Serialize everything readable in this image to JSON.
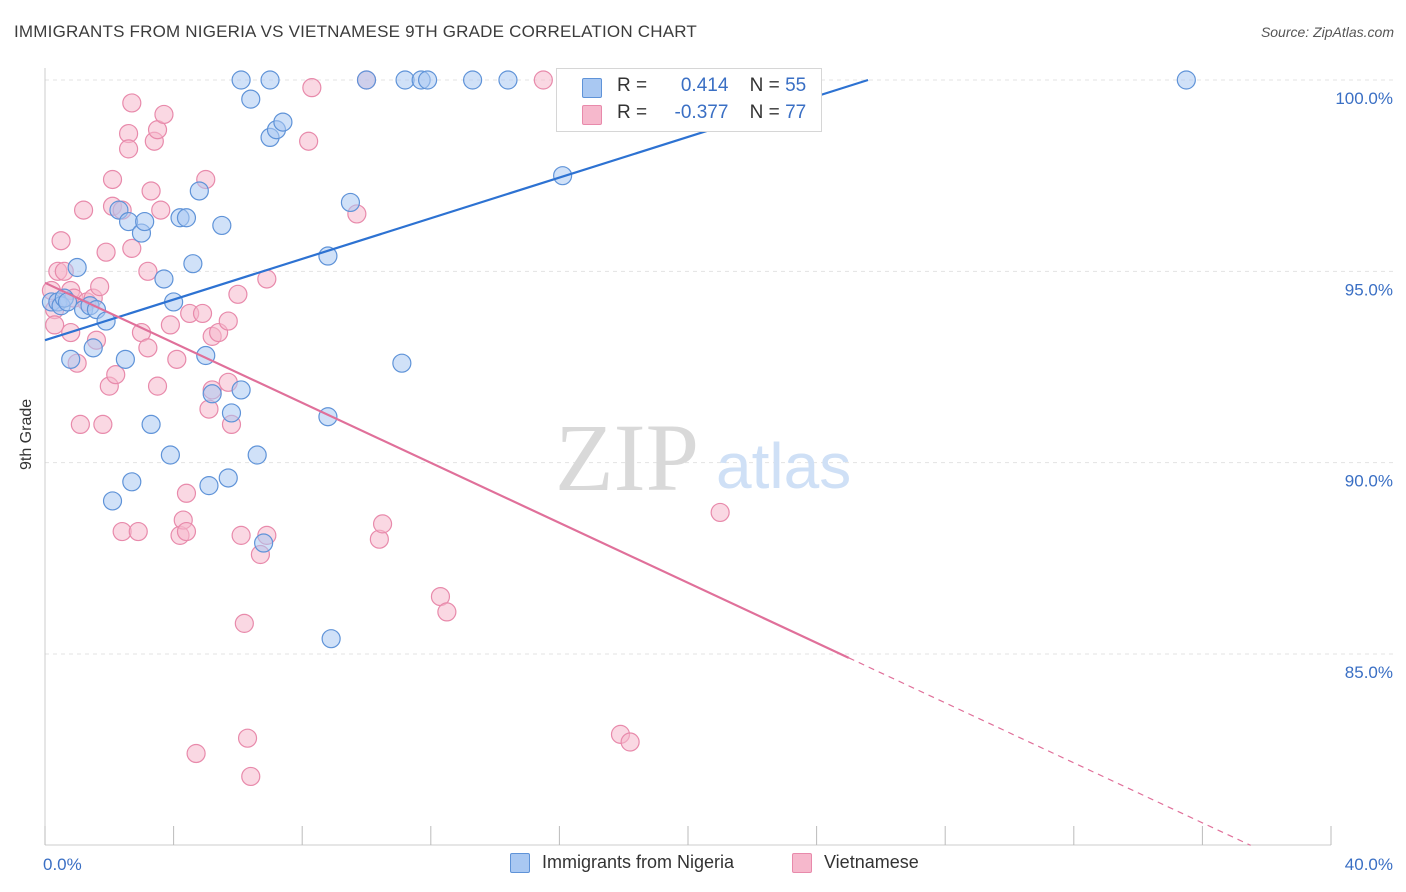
{
  "title": "IMMIGRANTS FROM NIGERIA VS VIETNAMESE 9TH GRADE CORRELATION CHART",
  "source": "Source: ZipAtlas.com",
  "watermark": {
    "zip": "ZIP",
    "atlas": "atlas"
  },
  "legend": {
    "r_label": "R =",
    "n_label": "N =",
    "rows": [
      {
        "r": "0.414",
        "n": "55",
        "color": "#a9c8f2"
      },
      {
        "r": "-0.377",
        "n": "77",
        "color": "#f6b8cc"
      }
    ]
  },
  "bottom_legend": [
    "Immigrants from Nigeria",
    "Vietnamese"
  ],
  "colors": {
    "blue_fill": "#a9c8f2",
    "blue_stroke": "#5f93d8",
    "blue_line": "#2d72d2",
    "pink_fill": "#f6b8cc",
    "pink_stroke": "#e88aab",
    "pink_line": "#e0709a",
    "grid": "#e3e3e3",
    "tick_text": "#3a6fc4"
  },
  "chart_data": {
    "type": "scatter",
    "title": "IMMIGRANTS FROM NIGERIA VS VIETNAMESE 9TH GRADE CORRELATION CHART",
    "xlabel": "",
    "ylabel": "9th Grade",
    "xlim": [
      0,
      40
    ],
    "ylim": [
      80.0,
      100.9
    ],
    "x_tick_labels": [
      "0.0%",
      "40.0%"
    ],
    "y_ticks": [
      100,
      95,
      90,
      85
    ],
    "y_tick_labels": [
      "100.0%",
      "95.0%",
      "90.0%",
      "85.0%"
    ],
    "grid": true,
    "legend_placement": "top-center",
    "series": [
      {
        "name": "Immigrants from Nigeria",
        "r": 0.414,
        "n": 55,
        "trend": {
          "x1": 0.0,
          "y1": 93.2,
          "x2": 25.6,
          "y2": 100.0
        },
        "points": [
          [
            0.2,
            94.2
          ],
          [
            0.4,
            94.2
          ],
          [
            0.5,
            94.1
          ],
          [
            0.6,
            94.3
          ],
          [
            0.7,
            94.2
          ],
          [
            0.8,
            92.7
          ],
          [
            1.0,
            95.1
          ],
          [
            1.2,
            94.0
          ],
          [
            1.4,
            94.1
          ],
          [
            1.5,
            93.0
          ],
          [
            1.6,
            94.0
          ],
          [
            1.9,
            93.7
          ],
          [
            2.1,
            89.0
          ],
          [
            2.3,
            96.6
          ],
          [
            2.5,
            92.7
          ],
          [
            2.6,
            96.3
          ],
          [
            2.7,
            89.5
          ],
          [
            3.0,
            96.0
          ],
          [
            3.1,
            96.3
          ],
          [
            3.3,
            91.0
          ],
          [
            3.7,
            94.8
          ],
          [
            3.9,
            90.2
          ],
          [
            4.0,
            94.2
          ],
          [
            4.2,
            96.4
          ],
          [
            4.4,
            96.4
          ],
          [
            4.6,
            95.2
          ],
          [
            4.8,
            97.1
          ],
          [
            5.0,
            92.8
          ],
          [
            5.1,
            89.4
          ],
          [
            5.2,
            91.8
          ],
          [
            5.5,
            96.2
          ],
          [
            5.7,
            89.6
          ],
          [
            5.8,
            91.3
          ],
          [
            6.1,
            91.9
          ],
          [
            6.4,
            99.5
          ],
          [
            6.6,
            90.2
          ],
          [
            6.8,
            87.9
          ],
          [
            7.0,
            98.5
          ],
          [
            7.2,
            98.7
          ],
          [
            7.4,
            98.9
          ],
          [
            6.1,
            100.0
          ],
          [
            7.0,
            100.0
          ],
          [
            9.5,
            96.8
          ],
          [
            8.8,
            95.4
          ],
          [
            8.8,
            91.2
          ],
          [
            8.9,
            85.4
          ],
          [
            10.0,
            100.0
          ],
          [
            11.2,
            100.0
          ],
          [
            11.7,
            100.0
          ],
          [
            11.9,
            100.0
          ],
          [
            11.1,
            92.6
          ],
          [
            13.3,
            100.0
          ],
          [
            14.4,
            100.0
          ],
          [
            16.1,
            97.5
          ],
          [
            35.5,
            100.0
          ]
        ]
      },
      {
        "name": "Vietnamese",
        "r": -0.377,
        "n": 77,
        "trend": {
          "x1": 0.0,
          "y1": 94.7,
          "x2": 25.0,
          "y2": 84.9
        },
        "trend_dashed": {
          "x1": 25.0,
          "y1": 84.9,
          "x2": 37.5,
          "y2": 80.0
        },
        "points": [
          [
            0.2,
            94.5
          ],
          [
            0.3,
            94.0
          ],
          [
            0.3,
            93.6
          ],
          [
            0.4,
            95.0
          ],
          [
            0.5,
            95.8
          ],
          [
            0.6,
            95.0
          ],
          [
            0.8,
            93.4
          ],
          [
            0.8,
            94.5
          ],
          [
            0.9,
            94.3
          ],
          [
            1.0,
            92.6
          ],
          [
            1.1,
            91.0
          ],
          [
            1.2,
            96.6
          ],
          [
            1.3,
            94.2
          ],
          [
            1.5,
            94.3
          ],
          [
            1.6,
            93.2
          ],
          [
            1.7,
            94.6
          ],
          [
            1.8,
            91.0
          ],
          [
            1.9,
            95.5
          ],
          [
            2.0,
            92.0
          ],
          [
            2.1,
            96.7
          ],
          [
            2.1,
            97.4
          ],
          [
            2.2,
            92.3
          ],
          [
            2.4,
            96.6
          ],
          [
            2.4,
            88.2
          ],
          [
            2.6,
            98.6
          ],
          [
            2.6,
            98.2
          ],
          [
            2.7,
            95.6
          ],
          [
            2.7,
            99.4
          ],
          [
            2.9,
            88.2
          ],
          [
            3.0,
            93.4
          ],
          [
            3.2,
            95.0
          ],
          [
            3.2,
            93.0
          ],
          [
            3.3,
            97.1
          ],
          [
            3.4,
            98.4
          ],
          [
            3.5,
            98.7
          ],
          [
            3.5,
            92.0
          ],
          [
            3.6,
            96.6
          ],
          [
            3.7,
            99.1
          ],
          [
            3.9,
            93.6
          ],
          [
            4.1,
            92.7
          ],
          [
            4.2,
            88.1
          ],
          [
            4.3,
            88.5
          ],
          [
            4.4,
            88.2
          ],
          [
            4.4,
            89.2
          ],
          [
            4.5,
            93.9
          ],
          [
            4.7,
            82.4
          ],
          [
            4.9,
            93.9
          ],
          [
            5.0,
            97.4
          ],
          [
            5.1,
            91.4
          ],
          [
            5.2,
            91.9
          ],
          [
            5.2,
            93.3
          ],
          [
            5.4,
            93.4
          ],
          [
            5.7,
            92.1
          ],
          [
            5.7,
            93.7
          ],
          [
            5.8,
            91.0
          ],
          [
            6.0,
            94.4
          ],
          [
            6.1,
            88.1
          ],
          [
            6.2,
            85.8
          ],
          [
            6.3,
            82.8
          ],
          [
            6.4,
            81.8
          ],
          [
            6.7,
            87.6
          ],
          [
            6.9,
            94.8
          ],
          [
            6.9,
            88.1
          ],
          [
            8.2,
            98.4
          ],
          [
            8.3,
            99.8
          ],
          [
            9.7,
            96.5
          ],
          [
            10.0,
            100.0
          ],
          [
            10.4,
            88.0
          ],
          [
            10.5,
            88.4
          ],
          [
            12.3,
            86.5
          ],
          [
            12.5,
            86.1
          ],
          [
            15.5,
            100.0
          ],
          [
            17.9,
            82.9
          ],
          [
            18.0,
            100.0
          ],
          [
            18.0,
            100.0
          ],
          [
            18.2,
            82.7
          ],
          [
            21.0,
            88.7
          ]
        ]
      }
    ]
  }
}
